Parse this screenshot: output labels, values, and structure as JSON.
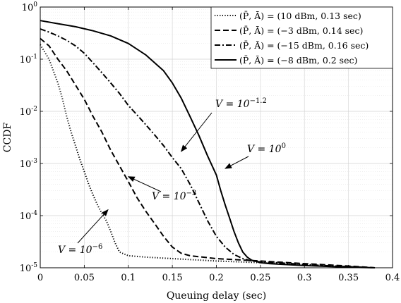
{
  "chart_data": {
    "type": "line",
    "xlabel": "Queuing delay (sec)",
    "ylabel": "CCDF",
    "xlim": [
      0,
      0.4
    ],
    "ylim": [
      1e-05,
      1
    ],
    "yscale": "log",
    "grid": true,
    "legend_position": "top-right",
    "x_ticks": [
      "0",
      "0.05",
      "0.1",
      "0.15",
      "0.2",
      "0.25",
      "0.3",
      "0.35",
      "0.4"
    ],
    "y_ticks": [
      {
        "base": "10",
        "exp": "-5"
      },
      {
        "base": "10",
        "exp": "-4"
      },
      {
        "base": "10",
        "exp": "-3"
      },
      {
        "base": "10",
        "exp": "-2"
      },
      {
        "base": "10",
        "exp": "-1"
      },
      {
        "base": "10",
        "exp": "0"
      }
    ],
    "series": [
      {
        "name": "(P̄, Ā) = (10 dBm, 0.13 sec)",
        "dash": "dotted",
        "x": [
          0,
          0.01,
          0.02,
          0.025,
          0.03,
          0.035,
          0.04,
          0.045,
          0.05,
          0.055,
          0.06,
          0.065,
          0.07,
          0.075,
          0.08,
          0.085,
          0.09,
          0.1,
          0.12,
          0.15,
          0.2,
          0.25,
          0.3,
          0.35,
          0.38
        ],
        "y": [
          0.19,
          0.1,
          0.035,
          0.018,
          0.008,
          0.004,
          0.0022,
          0.0012,
          0.0007,
          0.0004,
          0.00025,
          0.00016,
          0.00011,
          8e-05,
          5e-05,
          3e-05,
          2e-05,
          1.7e-05,
          1.6e-05,
          1.5e-05,
          1.35e-05,
          1.25e-05,
          1.15e-05,
          1.05e-05,
          1e-05
        ]
      },
      {
        "name": "(P̄, Ā) = (−3 dBm, 0.14 sec)",
        "dash": "dashed",
        "x": [
          0,
          0.01,
          0.02,
          0.03,
          0.04,
          0.05,
          0.06,
          0.07,
          0.08,
          0.09,
          0.1,
          0.11,
          0.12,
          0.13,
          0.14,
          0.15,
          0.16,
          0.17,
          0.2,
          0.25,
          0.3,
          0.35,
          0.38
        ],
        "y": [
          0.25,
          0.18,
          0.1,
          0.06,
          0.032,
          0.017,
          0.008,
          0.004,
          0.0018,
          0.0009,
          0.00045,
          0.00022,
          0.00012,
          7e-05,
          4e-05,
          2.5e-05,
          1.9e-05,
          1.7e-05,
          1.5e-05,
          1.35e-05,
          1.2e-05,
          1.08e-05,
          1e-05
        ]
      },
      {
        "name": "(P̄, Ā) = (−15 dBm, 0.16 sec)",
        "dash": "dashdot",
        "x": [
          0,
          0.01,
          0.02,
          0.03,
          0.04,
          0.05,
          0.06,
          0.07,
          0.08,
          0.09,
          0.1,
          0.11,
          0.12,
          0.13,
          0.14,
          0.15,
          0.16,
          0.17,
          0.18,
          0.19,
          0.2,
          0.21,
          0.22,
          0.23,
          0.24,
          0.25,
          0.28,
          0.3,
          0.35,
          0.38
        ],
        "y": [
          0.38,
          0.33,
          0.28,
          0.23,
          0.18,
          0.13,
          0.085,
          0.055,
          0.035,
          0.022,
          0.013,
          0.0085,
          0.0055,
          0.0035,
          0.0022,
          0.0013,
          0.0008,
          0.0004,
          0.00018,
          8e-05,
          4e-05,
          2.5e-05,
          1.8e-05,
          1.5e-05,
          1.35e-05,
          1.3e-05,
          1.22e-05,
          1.15e-05,
          1.05e-05,
          1e-05
        ]
      },
      {
        "name": "(P̄, Ā) = (−8 dBm, 0.2 sec)",
        "dash": "solid",
        "x": [
          0,
          0.02,
          0.04,
          0.06,
          0.08,
          0.1,
          0.12,
          0.14,
          0.15,
          0.16,
          0.17,
          0.18,
          0.19,
          0.2,
          0.205,
          0.21,
          0.215,
          0.22,
          0.225,
          0.23,
          0.235,
          0.24,
          0.25,
          0.26,
          0.28,
          0.3,
          0.35,
          0.38
        ],
        "y": [
          0.55,
          0.48,
          0.42,
          0.35,
          0.28,
          0.2,
          0.12,
          0.06,
          0.035,
          0.018,
          0.008,
          0.0035,
          0.0014,
          0.0006,
          0.0003,
          0.00016,
          9e-05,
          5e-05,
          3e-05,
          2e-05,
          1.6e-05,
          1.4e-05,
          1.25e-05,
          1.2e-05,
          1.15e-05,
          1.1e-05,
          1.03e-05,
          1e-05
        ]
      }
    ],
    "annotations": [
      {
        "prefix": "V = 10",
        "exp": "−1.2",
        "point": [
          0.16,
          0.0017
        ]
      },
      {
        "prefix": "V = 10",
        "exp": "0",
        "point": [
          0.21,
          0.0008
        ]
      },
      {
        "prefix": "V = 10",
        "exp": "−3",
        "point": [
          0.1,
          0.00056
        ]
      },
      {
        "prefix": "V = 10",
        "exp": "−6",
        "point": [
          0.077,
          0.00013
        ]
      }
    ]
  }
}
